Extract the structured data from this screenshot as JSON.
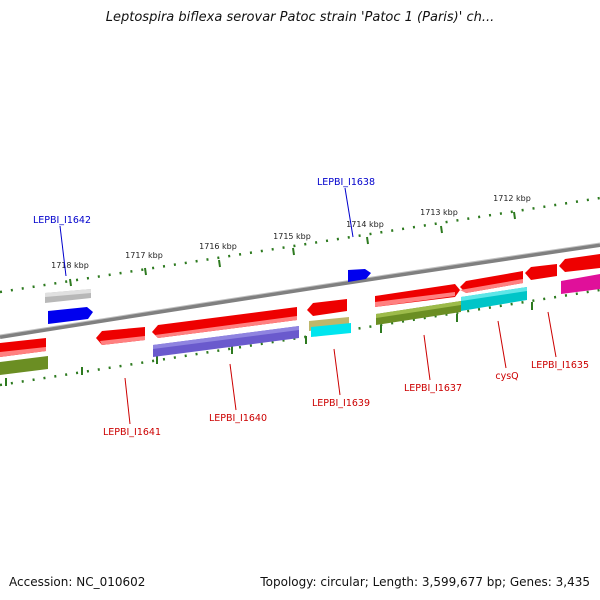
{
  "header": {
    "title": "Leptospira biflexa serovar Patoc strain 'Patoc 1 (Paris)' ch..."
  },
  "footer": {
    "accession": "Accession: NC_010602",
    "summary": "Topology: circular; Length: 3,599,677 bp; Genes: 3,435"
  },
  "scale_labels": [
    "1718 kbp",
    "1717 kbp",
    "1716 kbp",
    "1715 kbp",
    "1714 kbp",
    "1713 kbp",
    "1712 kbp"
  ],
  "gene_labels": {
    "top": [
      "LEPBI_I1642",
      "LEPBI_I1638"
    ],
    "bottom": [
      "LEPBI_I1641",
      "LEPBI_I1640",
      "LEPBI_I1639",
      "LEPBI_I1637",
      "cysQ",
      "LEPBI_I1635"
    ]
  },
  "colors": {
    "backbone": "#808080",
    "scale_ticks": "#2d7a1f",
    "gene_red": "#ee0000",
    "gene_blue": "#0000ee",
    "gene_gray": "#b8b8b8",
    "gene_olive": "#6b8e23",
    "gene_purple": "#6a5acd",
    "gene_tan": "#bdb76b",
    "gene_cyan": "#00ced1",
    "gene_magenta": "#e0109a",
    "label_blue": "#0000cc",
    "label_red": "#cc0000"
  }
}
